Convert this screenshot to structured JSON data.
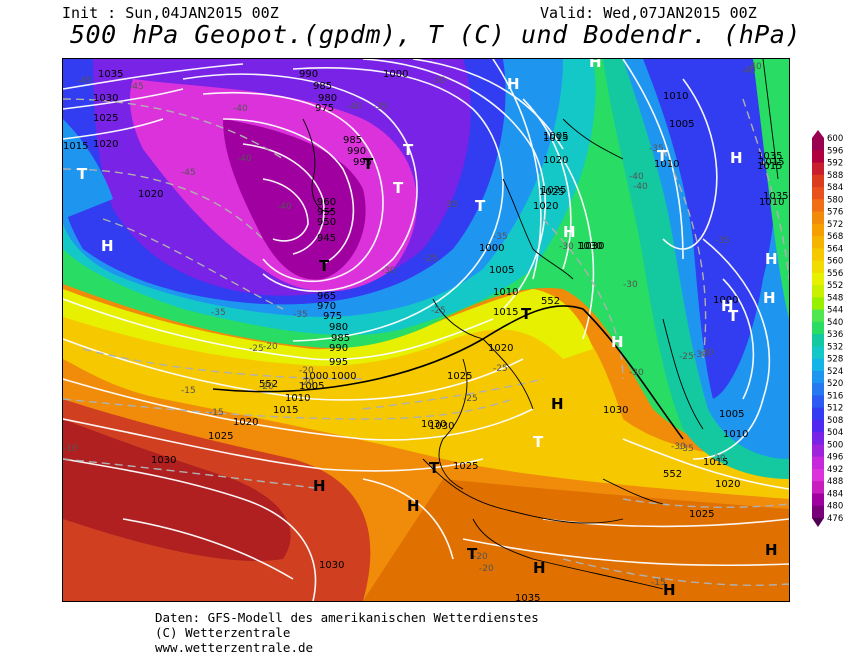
{
  "header": {
    "init": "Init : Sun,04JAN2015 00Z",
    "valid": "Valid: Wed,07JAN2015 00Z",
    "title": "500 hPa Geopot.(gpdm), T (C) und Bodendr. (hPa)"
  },
  "footer": {
    "line1": "Daten: GFS-Modell des amerikanischen Wetterdienstes",
    "line2": "(C) Wetterzentrale",
    "line3": "www.wetterzentrale.de"
  },
  "colors": {
    "deep_purple": "#a000a0",
    "magenta": "#e030e0",
    "violet": "#7020e0",
    "blue": "#2040f0",
    "light_blue": "#20a0f0",
    "cyan": "#20d0d0",
    "green": "#40e040",
    "yellow_green": "#c0e000",
    "yellow": "#f0e000",
    "orange": "#f0a000",
    "dark_orange": "#e07000",
    "red_orange": "#d04020",
    "dark_red": "#b02020"
  },
  "scale": {
    "ticks": [
      "600",
      "596",
      "592",
      "588",
      "584",
      "580",
      "576",
      "572",
      "568",
      "564",
      "560",
      "556",
      "552",
      "548",
      "544",
      "540",
      "536",
      "532",
      "528",
      "524",
      "520",
      "516",
      "512",
      "508",
      "504",
      "500",
      "496",
      "492",
      "488",
      "484",
      "480",
      "476"
    ],
    "colors": [
      "#9a0050",
      "#b00040",
      "#c81e2d",
      "#dc3c1e",
      "#e8501e",
      "#f06e14",
      "#f08c0a",
      "#f5a000",
      "#f5b400",
      "#f5c800",
      "#f0dc00",
      "#e6f000",
      "#c8f000",
      "#96f000",
      "#50e650",
      "#28dc64",
      "#14c8a0",
      "#14c8c8",
      "#14b4e6",
      "#1e96f0",
      "#2878f0",
      "#2d5af0",
      "#323cf0",
      "#5028f0",
      "#7823e6",
      "#a023dc",
      "#c828dc",
      "#dc32dc",
      "#c81ebe",
      "#a000a0",
      "#780078",
      "#500050"
    ]
  },
  "labels": {
    "pressure": [
      "1035",
      "1030",
      "1025",
      "1020",
      "1015",
      "1020",
      "990",
      "985",
      "980",
      "975",
      "1000",
      "1005",
      "1010",
      "1015",
      "1020",
      "1025",
      "1030",
      "1035",
      "985",
      "990",
      "995",
      "1000",
      "1005",
      "1010",
      "1015",
      "1020",
      "1025",
      "1030",
      "1000",
      "1005",
      "1010",
      "1015",
      "1020",
      "1025",
      "1030",
      "1035",
      "1010",
      "1015",
      "1020",
      "1025",
      "1030",
      "1005",
      "1010",
      "1015",
      "1000",
      "995",
      "990",
      "985",
      "980",
      "975",
      "970",
      "965",
      "960",
      "955",
      "950",
      "945",
      "1000",
      "1005",
      "1010",
      "1015",
      "1020",
      "1025",
      "1030",
      "1030",
      "1025",
      "1030",
      "1035"
    ],
    "temperature": [
      "-45",
      "-45",
      "-40",
      "-45",
      "-40",
      "-40",
      "-35",
      "-35",
      "-40",
      "-35",
      "-30",
      "-25",
      "-30",
      "-35",
      "-30",
      "-25",
      "-35",
      "-25",
      "-30",
      "-25",
      "-20",
      "-20",
      "-15",
      "-10",
      "-15",
      "-25",
      "-20",
      "-20",
      "-20",
      "-15",
      "-35",
      "-30",
      "-30",
      "-40",
      "-40",
      "-35",
      "-30",
      "-25",
      "-20",
      "-20",
      "-30",
      "-35",
      "-40",
      "-40"
    ],
    "height552": [
      "552",
      "552",
      "552"
    ],
    "centers": [
      "H",
      "H",
      "T",
      "T",
      "T",
      "T",
      "T",
      "H",
      "H",
      "H",
      "T",
      "H",
      "H",
      "T",
      "T",
      "H",
      "H",
      "H",
      "H",
      "T",
      "T",
      "H",
      "H",
      "H",
      "T",
      "H",
      "T"
    ]
  }
}
